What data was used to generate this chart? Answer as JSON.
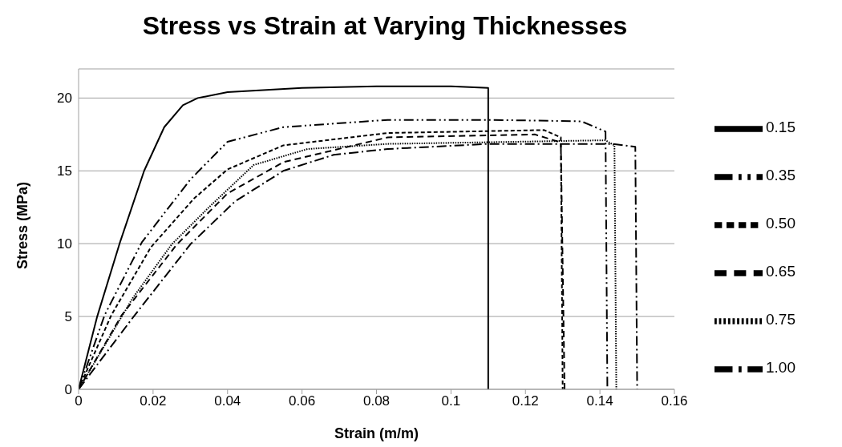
{
  "chart_data": {
    "type": "line",
    "title": "Stress vs Strain at Varying Thicknesses",
    "xlabel": "Strain (m/m)",
    "ylabel": "Stress (MPa)",
    "xlim": [
      0,
      0.16
    ],
    "xticks": [
      0,
      0.02,
      0.04,
      0.06,
      0.08,
      0.1,
      0.12,
      0.14,
      0.16
    ],
    "ylim": [
      0,
      22
    ],
    "yticks": [
      0,
      5,
      10,
      15,
      20
    ],
    "grid": "y",
    "legend": "right",
    "marker": "none",
    "series": [
      {
        "name": "0.15",
        "color": "#000000",
        "line_style": "solid",
        "x": [
          0,
          0.005,
          0.011,
          0.0176,
          0.023,
          0.028,
          0.032,
          0.04,
          0.06,
          0.08,
          0.1,
          0.11,
          0.11
        ],
        "values": [
          0,
          5,
          10,
          15,
          18,
          19.5,
          20,
          20.4,
          20.7,
          20.8,
          20.8,
          20.7,
          0
        ]
      },
      {
        "name": "0.35",
        "color": "#000000",
        "line_style": "dashed",
        "x": [
          0,
          0.007,
          0.017,
          0.03,
          0.04,
          0.055,
          0.083,
          0.11,
          0.135,
          0.1415,
          0.142
        ],
        "values": [
          0,
          5.1,
          10.1,
          14.4,
          17,
          18,
          18.5,
          18.5,
          18.4,
          17.7,
          0
        ]
      },
      {
        "name": "0.50",
        "color": "#000000",
        "line_style": "dashed",
        "x": [
          0,
          0.0088,
          0.0194,
          0.031,
          0.04,
          0.055,
          0.083,
          0.125,
          0.1295,
          0.13
        ],
        "values": [
          0,
          5.1,
          9.75,
          13.1,
          15.1,
          16.75,
          17.6,
          17.8,
          17.3,
          0
        ]
      },
      {
        "name": "0.65",
        "color": "#000000",
        "line_style": "dashed",
        "x": [
          0,
          0.0116,
          0.0264,
          0.04,
          0.055,
          0.083,
          0.1225,
          0.1295,
          0.1305
        ],
        "values": [
          0,
          5.1,
          9.95,
          13.45,
          15.6,
          17.3,
          17.5,
          16.95,
          0
        ]
      },
      {
        "name": "0.75",
        "color": "#000000",
        "line_style": "dotted",
        "x": [
          0,
          0.0145,
          0.025,
          0.035,
          0.047,
          0.0615,
          0.083,
          0.1415,
          0.1439,
          0.1444
        ],
        "values": [
          0,
          6.25,
          9.95,
          12.5,
          15.4,
          16.5,
          16.85,
          17.1,
          16.75,
          0
        ]
      },
      {
        "name": "1.00",
        "color": "#000000",
        "line_style": "dashed",
        "x": [
          0,
          0.0148,
          0.03,
          0.042,
          0.055,
          0.0685,
          0.083,
          0.11,
          0.1436,
          0.1495,
          0.15
        ],
        "values": [
          0,
          5,
          9.95,
          12.9,
          15,
          16.1,
          16.5,
          16.85,
          16.85,
          16.65,
          0
        ]
      }
    ]
  }
}
